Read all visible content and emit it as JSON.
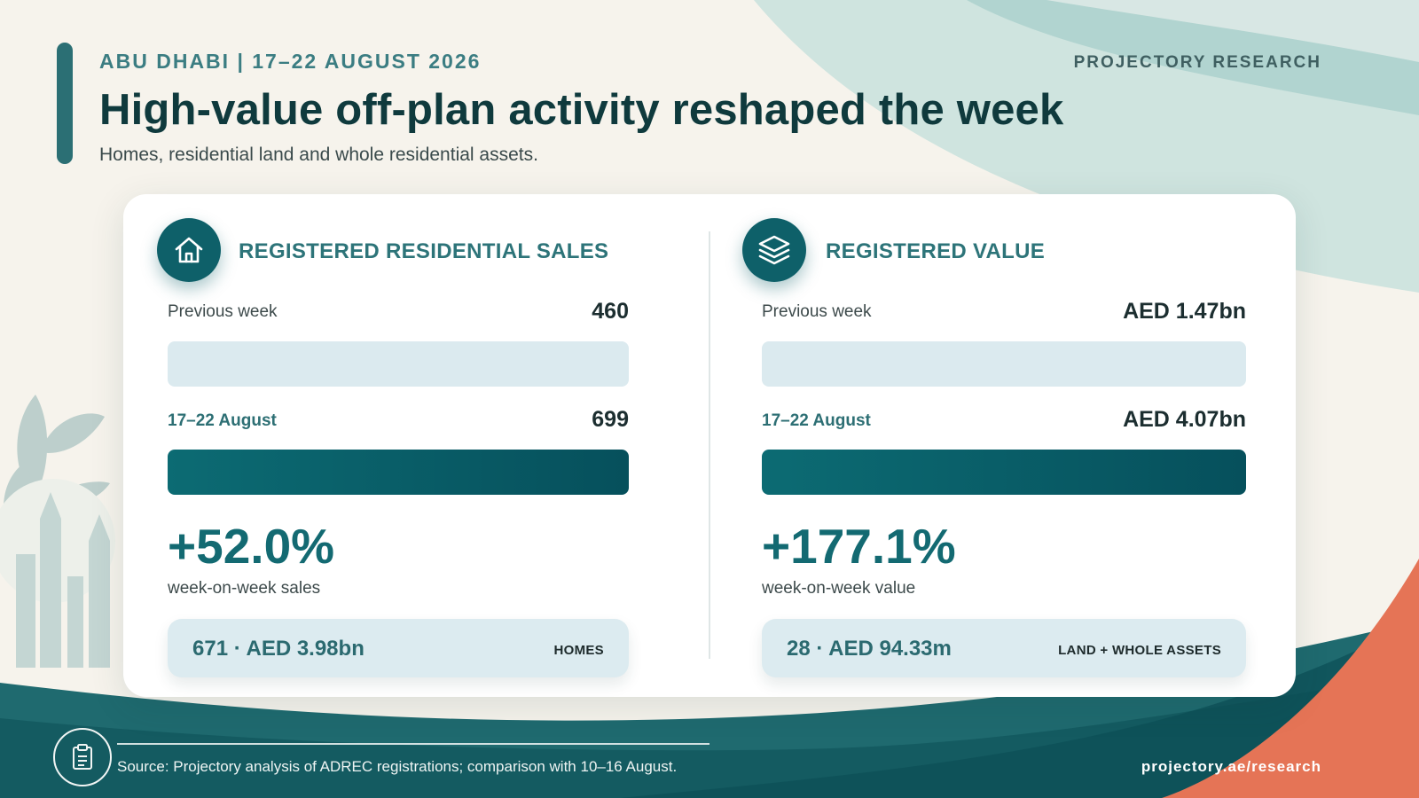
{
  "header": {
    "kicker": "ABU DHABI | 17–22 AUGUST 2026",
    "brand": "PROJECTORY RESEARCH",
    "title": "High-value off-plan activity reshaped the week",
    "subtitle": "Homes, residential land and whole residential assets."
  },
  "colors": {
    "primary": "#0e6069",
    "accent_coral": "#e57456",
    "bar_previous": "#dbeaef"
  },
  "panels": {
    "sales": {
      "icon": "house-icon",
      "title": "REGISTERED RESIDENTIAL SALES",
      "previous_label": "Previous week",
      "previous_value": "460",
      "current_label": "17–22 August",
      "current_value": "699",
      "change": "+52.0%",
      "change_caption": "week-on-week sales",
      "breakdown_main": "671 · AED 3.98bn",
      "breakdown_tag": "HOMES"
    },
    "value": {
      "icon": "layers-icon",
      "title": "REGISTERED VALUE",
      "previous_label": "Previous week",
      "previous_value": "AED 1.47bn",
      "current_label": "17–22 August",
      "current_value": "AED 4.07bn",
      "change": "+177.1%",
      "change_caption": "week-on-week value",
      "breakdown_main": "28 · AED 94.33m",
      "breakdown_tag": "LAND + WHOLE ASSETS"
    }
  },
  "footer": {
    "icon": "clipboard-icon",
    "source": "Source: Projectory analysis of ADREC registrations; comparison with 10–16 August.",
    "url": "projectory.ae/research"
  }
}
